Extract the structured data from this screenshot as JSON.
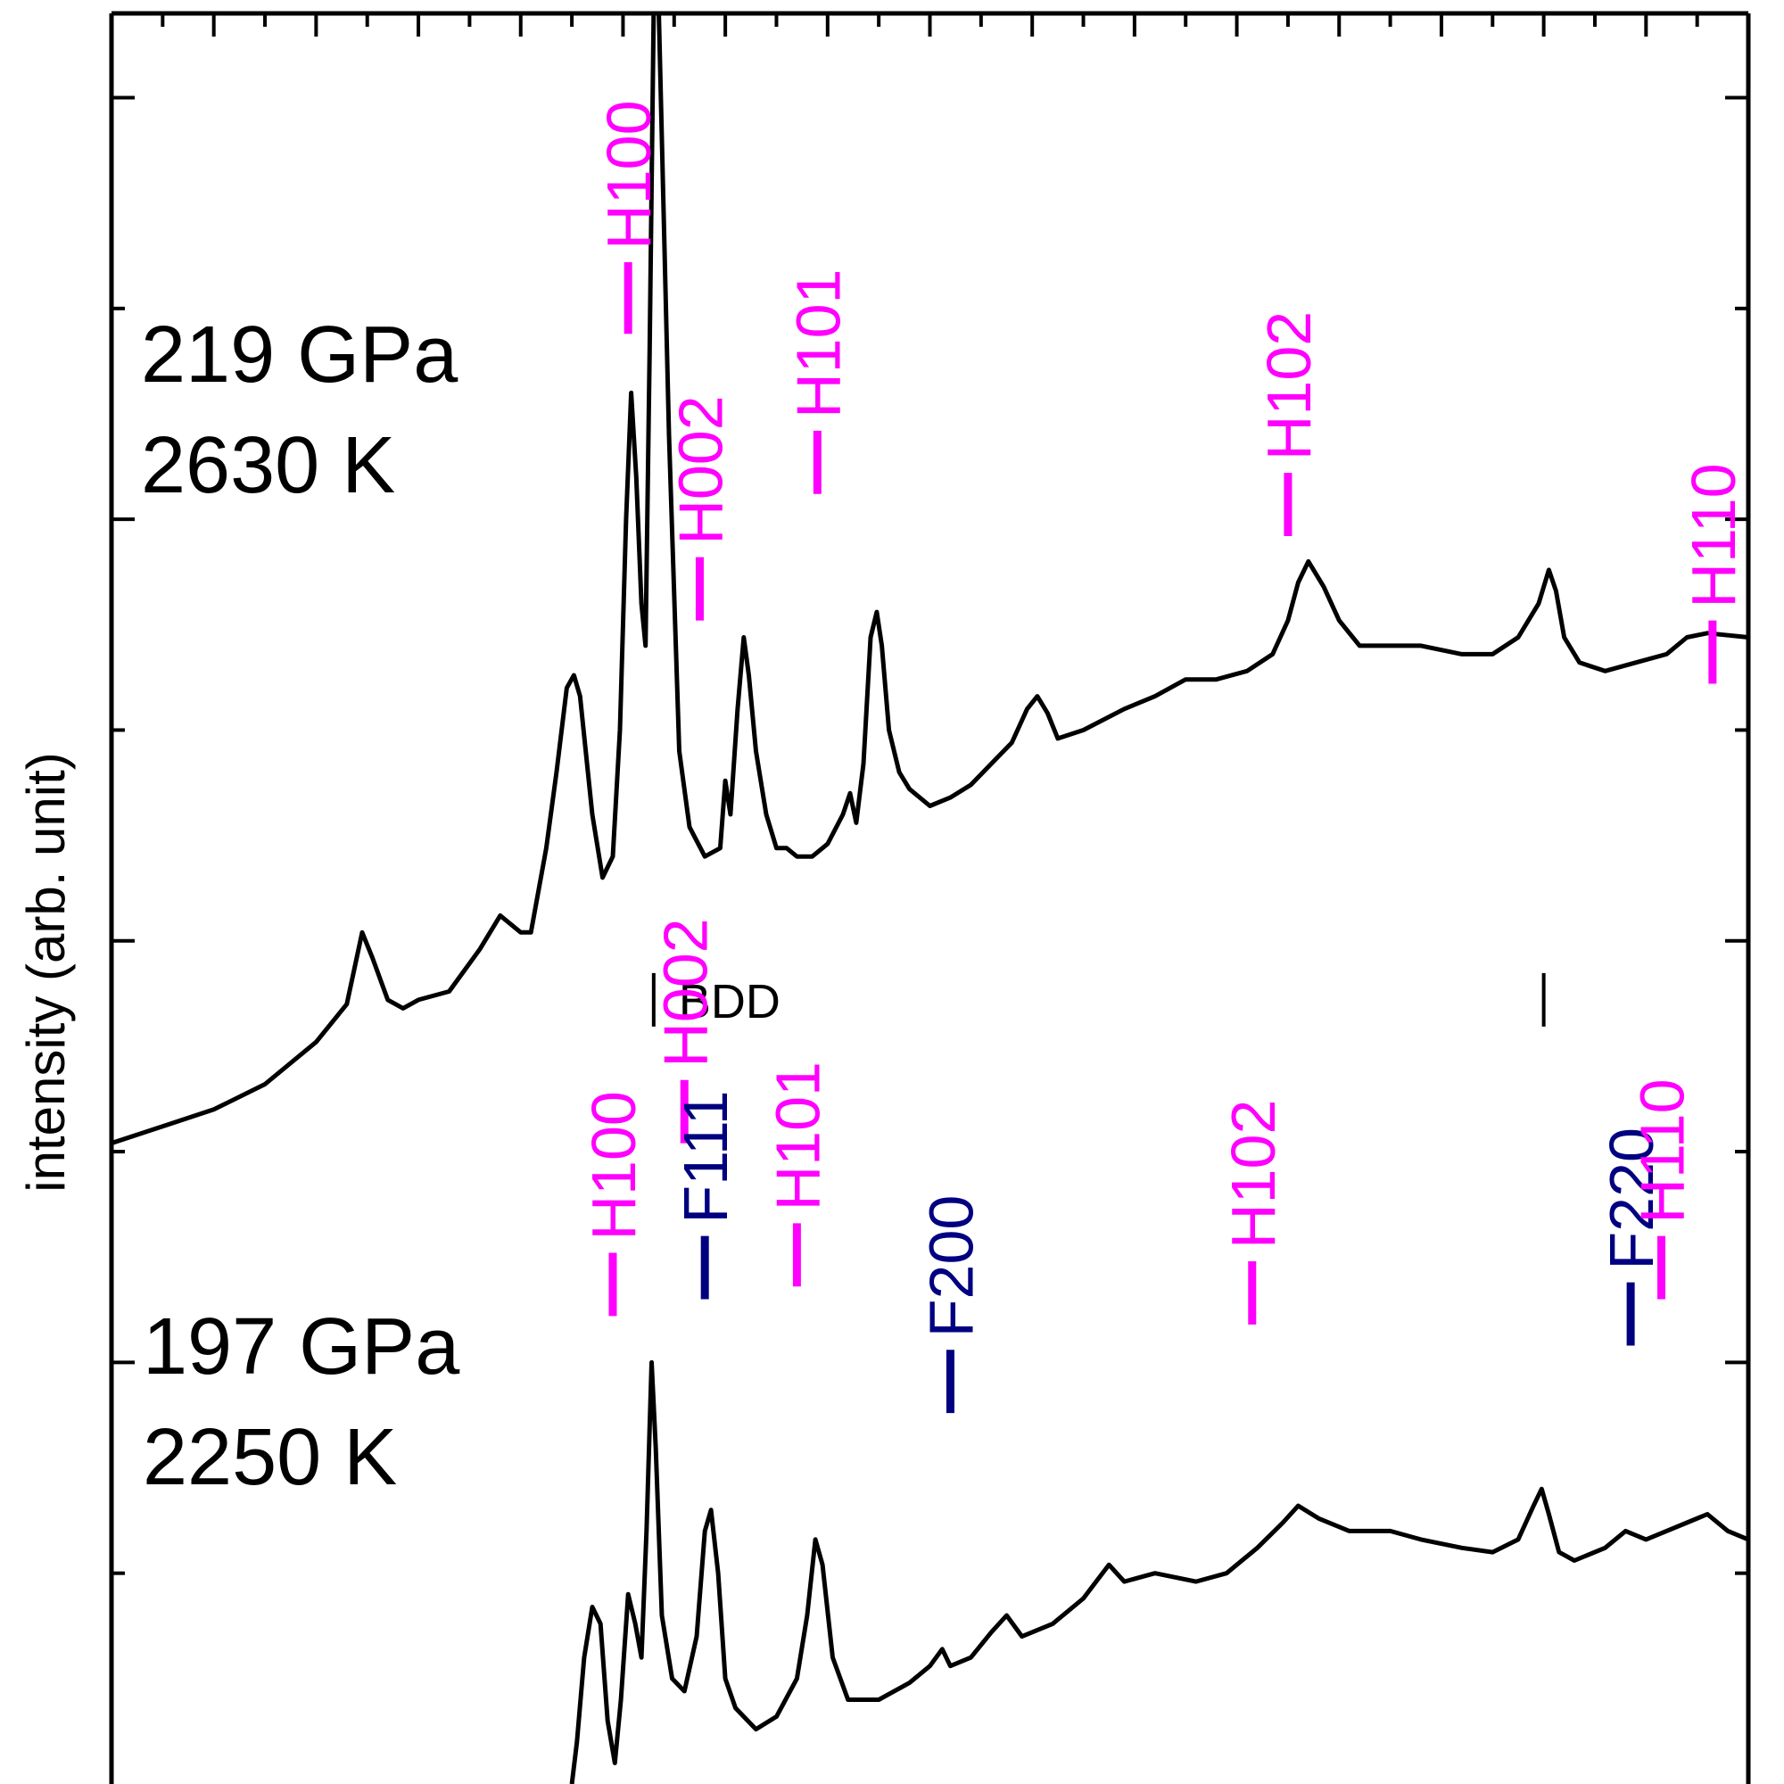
{
  "chart_data": {
    "type": "line",
    "ylabel": "intensity (arb. unit)",
    "xlim": [
      5.0,
      21.0
    ],
    "ylim": [
      0,
      4.2
    ],
    "colors": {
      "hcp": "#ff00ff",
      "fcc": "#000080",
      "trace": "#000000",
      "bdd": "#000000"
    },
    "series": [
      {
        "id": "top",
        "annotation": [
          "219 GPa",
          "2630 K"
        ],
        "points": [
          [
            5.0,
            1.52
          ],
          [
            5.5,
            1.56
          ],
          [
            6.0,
            1.6
          ],
          [
            6.5,
            1.66
          ],
          [
            7.0,
            1.76
          ],
          [
            7.3,
            1.85
          ],
          [
            7.45,
            2.02
          ],
          [
            7.55,
            1.96
          ],
          [
            7.7,
            1.86
          ],
          [
            7.85,
            1.84
          ],
          [
            8.0,
            1.86
          ],
          [
            8.3,
            1.88
          ],
          [
            8.6,
            1.98
          ],
          [
            8.8,
            2.06
          ],
          [
            9.0,
            2.02
          ],
          [
            9.1,
            2.02
          ],
          [
            9.25,
            2.22
          ],
          [
            9.35,
            2.4
          ],
          [
            9.45,
            2.6
          ],
          [
            9.52,
            2.63
          ],
          [
            9.58,
            2.58
          ],
          [
            9.7,
            2.3
          ],
          [
            9.8,
            2.15
          ],
          [
            9.9,
            2.2
          ],
          [
            9.97,
            2.5
          ],
          [
            10.03,
            3.0
          ],
          [
            10.08,
            3.3
          ],
          [
            10.13,
            3.1
          ],
          [
            10.18,
            2.8
          ],
          [
            10.22,
            2.7
          ],
          [
            10.26,
            3.4
          ],
          [
            10.3,
            4.2
          ],
          [
            10.35,
            4.2
          ],
          [
            10.4,
            3.7
          ],
          [
            10.45,
            3.2
          ],
          [
            10.55,
            2.45
          ],
          [
            10.65,
            2.27
          ],
          [
            10.8,
            2.2
          ],
          [
            10.95,
            2.22
          ],
          [
            11.0,
            2.38
          ],
          [
            11.05,
            2.3
          ],
          [
            11.12,
            2.55
          ],
          [
            11.18,
            2.72
          ],
          [
            11.23,
            2.63
          ],
          [
            11.3,
            2.45
          ],
          [
            11.4,
            2.3
          ],
          [
            11.5,
            2.22
          ],
          [
            11.6,
            2.22
          ],
          [
            11.7,
            2.2
          ],
          [
            11.85,
            2.2
          ],
          [
            12.0,
            2.23
          ],
          [
            12.15,
            2.3
          ],
          [
            12.22,
            2.35
          ],
          [
            12.28,
            2.28
          ],
          [
            12.35,
            2.42
          ],
          [
            12.42,
            2.72
          ],
          [
            12.48,
            2.78
          ],
          [
            12.53,
            2.7
          ],
          [
            12.6,
            2.5
          ],
          [
            12.7,
            2.4
          ],
          [
            12.8,
            2.36
          ],
          [
            13.0,
            2.32
          ],
          [
            13.2,
            2.34
          ],
          [
            13.4,
            2.37
          ],
          [
            13.6,
            2.42
          ],
          [
            13.8,
            2.47
          ],
          [
            13.95,
            2.55
          ],
          [
            14.05,
            2.58
          ],
          [
            14.15,
            2.54
          ],
          [
            14.25,
            2.48
          ],
          [
            14.5,
            2.5
          ],
          [
            14.9,
            2.55
          ],
          [
            15.2,
            2.58
          ],
          [
            15.5,
            2.62
          ],
          [
            15.8,
            2.62
          ],
          [
            16.1,
            2.64
          ],
          [
            16.35,
            2.68
          ],
          [
            16.5,
            2.76
          ],
          [
            16.6,
            2.85
          ],
          [
            16.7,
            2.9
          ],
          [
            16.85,
            2.84
          ],
          [
            17.0,
            2.76
          ],
          [
            17.2,
            2.7
          ],
          [
            17.5,
            2.7
          ],
          [
            17.8,
            2.7
          ],
          [
            18.2,
            2.68
          ],
          [
            18.5,
            2.68
          ],
          [
            18.75,
            2.72
          ],
          [
            18.95,
            2.8
          ],
          [
            19.05,
            2.88
          ],
          [
            19.12,
            2.83
          ],
          [
            19.2,
            2.72
          ],
          [
            19.35,
            2.66
          ],
          [
            19.6,
            2.64
          ],
          [
            19.9,
            2.66
          ],
          [
            20.2,
            2.68
          ],
          [
            20.4,
            2.72
          ],
          [
            20.6,
            2.73
          ],
          [
            21.0,
            2.72
          ]
        ]
      },
      {
        "id": "bottom",
        "annotation": [
          "197 GPa",
          "2250 K"
        ],
        "points": [
          [
            9.5,
            0.0
          ],
          [
            9.55,
            0.1
          ],
          [
            9.62,
            0.3
          ],
          [
            9.7,
            0.42
          ],
          [
            9.78,
            0.38
          ],
          [
            9.85,
            0.15
          ],
          [
            9.92,
            0.05
          ],
          [
            9.98,
            0.2
          ],
          [
            10.05,
            0.45
          ],
          [
            10.12,
            0.38
          ],
          [
            10.18,
            0.3
          ],
          [
            10.23,
            0.6
          ],
          [
            10.28,
            1.0
          ],
          [
            10.32,
            0.8
          ],
          [
            10.38,
            0.4
          ],
          [
            10.48,
            0.25
          ],
          [
            10.6,
            0.22
          ],
          [
            10.72,
            0.35
          ],
          [
            10.8,
            0.6
          ],
          [
            10.86,
            0.65
          ],
          [
            10.93,
            0.5
          ],
          [
            11.0,
            0.25
          ],
          [
            11.1,
            0.18
          ],
          [
            11.3,
            0.13
          ],
          [
            11.5,
            0.16
          ],
          [
            11.7,
            0.25
          ],
          [
            11.8,
            0.4
          ],
          [
            11.88,
            0.58
          ],
          [
            11.95,
            0.52
          ],
          [
            12.05,
            0.3
          ],
          [
            12.2,
            0.2
          ],
          [
            12.5,
            0.2
          ],
          [
            12.8,
            0.24
          ],
          [
            13.0,
            0.28
          ],
          [
            13.12,
            0.32
          ],
          [
            13.2,
            0.28
          ],
          [
            13.4,
            0.3
          ],
          [
            13.6,
            0.36
          ],
          [
            13.75,
            0.4
          ],
          [
            13.9,
            0.35
          ],
          [
            14.2,
            0.38
          ],
          [
            14.5,
            0.44
          ],
          [
            14.75,
            0.52
          ],
          [
            14.9,
            0.48
          ],
          [
            15.2,
            0.5
          ],
          [
            15.6,
            0.48
          ],
          [
            15.9,
            0.5
          ],
          [
            16.2,
            0.56
          ],
          [
            16.45,
            0.62
          ],
          [
            16.6,
            0.66
          ],
          [
            16.8,
            0.63
          ],
          [
            17.1,
            0.6
          ],
          [
            17.5,
            0.6
          ],
          [
            17.8,
            0.58
          ],
          [
            18.2,
            0.56
          ],
          [
            18.5,
            0.55
          ],
          [
            18.75,
            0.58
          ],
          [
            18.9,
            0.66
          ],
          [
            18.98,
            0.7
          ],
          [
            19.05,
            0.64
          ],
          [
            19.15,
            0.55
          ],
          [
            19.3,
            0.53
          ],
          [
            19.6,
            0.56
          ],
          [
            19.8,
            0.6
          ],
          [
            20.0,
            0.58
          ],
          [
            20.2,
            0.6
          ],
          [
            20.4,
            0.62
          ],
          [
            20.6,
            0.64
          ],
          [
            20.8,
            0.6
          ],
          [
            21.0,
            0.58
          ]
        ]
      }
    ],
    "peak_labels": [
      {
        "text": "H100",
        "phase": "hcp",
        "x": 10.05,
        "y": 3.44,
        "len": 0.17
      },
      {
        "text": "H002",
        "phase": "hcp",
        "x": 10.75,
        "y": 2.76,
        "len": 0.15
      },
      {
        "text": "H101",
        "phase": "hcp",
        "x": 11.9,
        "y": 3.06,
        "len": 0.15
      },
      {
        "text": "H102",
        "phase": "hcp",
        "x": 16.5,
        "y": 2.96,
        "len": 0.15
      },
      {
        "text": "H110",
        "phase": "hcp",
        "x": 20.65,
        "y": 2.61,
        "len": 0.15
      },
      {
        "text": "H100",
        "phase": "hcp",
        "x": 9.9,
        "y": 1.11,
        "len": 0.15
      },
      {
        "text": "H002",
        "phase": "hcp",
        "x": 10.6,
        "y": 1.52,
        "len": 0.15
      },
      {
        "text": "F111",
        "phase": "fcc",
        "x": 10.8,
        "y": 1.15,
        "len": 0.15
      },
      {
        "text": "H101",
        "phase": "hcp",
        "x": 11.7,
        "y": 1.18,
        "len": 0.15
      },
      {
        "text": "F200",
        "phase": "fcc",
        "x": 13.2,
        "y": 0.88,
        "len": 0.15
      },
      {
        "text": "H102",
        "phase": "hcp",
        "x": 16.15,
        "y": 1.09,
        "len": 0.15
      },
      {
        "text": "F220",
        "phase": "fcc",
        "x": 19.85,
        "y": 1.04,
        "len": 0.15
      },
      {
        "text": "H110",
        "phase": "hcp",
        "x": 20.15,
        "y": 1.15,
        "len": 0.15
      }
    ],
    "reference_marks": [
      {
        "x": 10.3,
        "label": "BDD",
        "y": 1.86
      },
      {
        "x": 19.0,
        "label": "",
        "y": 1.86
      }
    ]
  }
}
